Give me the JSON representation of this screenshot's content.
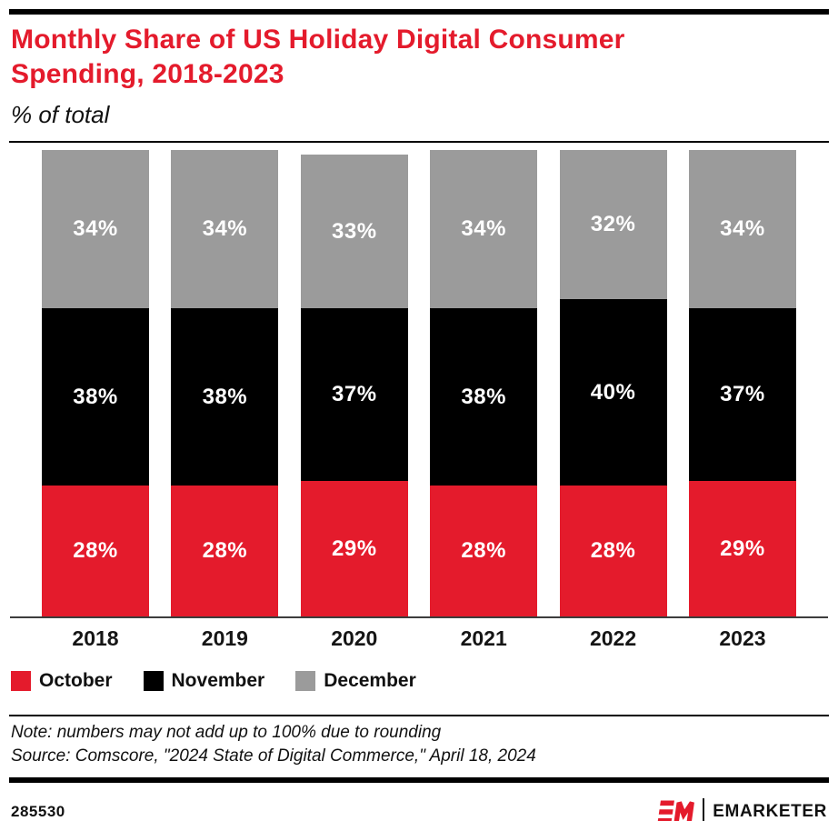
{
  "header": {
    "title": "Monthly Share of US Holiday Digital Consumer Spending, 2018-2023",
    "subtitle": "% of total",
    "title_color": "#E41B2C"
  },
  "chart_data": {
    "type": "bar",
    "stacked": true,
    "categories": [
      "2018",
      "2019",
      "2020",
      "2021",
      "2022",
      "2023"
    ],
    "series": [
      {
        "name": "October",
        "color": "#E41B2C",
        "values": [
          28,
          28,
          29,
          28,
          28,
          29
        ]
      },
      {
        "name": "November",
        "color": "#000000",
        "values": [
          38,
          38,
          37,
          38,
          40,
          37
        ]
      },
      {
        "name": "December",
        "color": "#9B9B9B",
        "values": [
          34,
          34,
          33,
          34,
          32,
          34
        ]
      }
    ],
    "stack_order_bottom_to_top": [
      "October",
      "November",
      "December"
    ],
    "value_suffix": "%",
    "data_label_color": "#FFFFFF",
    "ylim": [
      0,
      100
    ],
    "grid": false,
    "legend_position": "bottom"
  },
  "footnote": {
    "note": "Note: numbers may not add up to 100% due to rounding",
    "source": "Source: Comscore, \"2024 State of Digital Commerce,\" April 18, 2024"
  },
  "footer": {
    "chart_id": "285530",
    "logo_mark": "EM",
    "brand_name": "EMARKETER"
  }
}
